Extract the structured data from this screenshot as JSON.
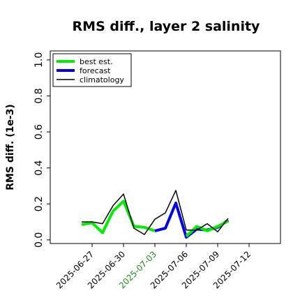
{
  "chart_data": {
    "type": "line",
    "title": "RMS diff., layer 2 salinity",
    "xlabel": "",
    "ylabel": "RMS diff. (1e-3)",
    "ylim": [
      -0.02,
      1.05
    ],
    "yticks": [
      0.0,
      0.2,
      0.4,
      0.6,
      0.8,
      1.0
    ],
    "ytick_labels": [
      "0.0",
      "0.2",
      "0.4",
      "0.6",
      "0.8",
      "1.0"
    ],
    "xlim": [
      "2025-06-23",
      "2025-07-15"
    ],
    "xticks": [
      "2025-06-27",
      "2025-06-30",
      "2025-07-03",
      "2025-07-06",
      "2025-07-09",
      "2025-07-12"
    ],
    "xtick_labels": [
      "2025-06-27",
      "2025-06-30",
      "2025-07-03",
      "2025-07-06",
      "2025-07-09",
      "2025-07-12"
    ],
    "highlight_tick": "2025-07-03",
    "highlight_color": "#228B22",
    "grid": false,
    "legend_position": "top-left",
    "series": [
      {
        "name": "best est.",
        "color": "#00ee00",
        "x": [
          "2025-06-26",
          "2025-06-27",
          "2025-06-28",
          "2025-06-29",
          "2025-06-30",
          "2025-07-01",
          "2025-07-02",
          "2025-07-03"
        ],
        "y": [
          0.085,
          0.095,
          0.04,
          0.16,
          0.215,
          0.075,
          0.07,
          0.05
        ]
      },
      {
        "name": "forecast",
        "color": "#0000ee",
        "x": [
          "2025-07-03",
          "2025-07-04",
          "2025-07-05",
          "2025-07-06",
          "2025-07-07",
          "2025-07-08",
          "2025-07-09",
          "2025-07-10"
        ],
        "y": [
          0.05,
          0.065,
          0.205,
          0.015,
          0.06,
          0.055,
          0.07,
          0.11
        ]
      },
      {
        "name": "best est.",
        "color": "#00ee00",
        "x": [
          "2025-07-06",
          "2025-07-07",
          "2025-07-08",
          "2025-07-09",
          "2025-07-10"
        ],
        "y": [
          0.02,
          0.075,
          0.05,
          0.075,
          0.105
        ],
        "legend": false
      },
      {
        "name": "climatology",
        "color": "#000000",
        "x": [
          "2025-06-26",
          "2025-06-27",
          "2025-06-28",
          "2025-06-29",
          "2025-06-30",
          "2025-07-01",
          "2025-07-02",
          "2025-07-03",
          "2025-07-04",
          "2025-07-05",
          "2025-07-06",
          "2025-07-07",
          "2025-07-08",
          "2025-07-09",
          "2025-07-10"
        ],
        "y": [
          0.1,
          0.1,
          0.09,
          0.19,
          0.255,
          0.065,
          0.03,
          0.115,
          0.15,
          0.275,
          0.055,
          0.055,
          0.09,
          0.045,
          0.12
        ]
      }
    ]
  }
}
